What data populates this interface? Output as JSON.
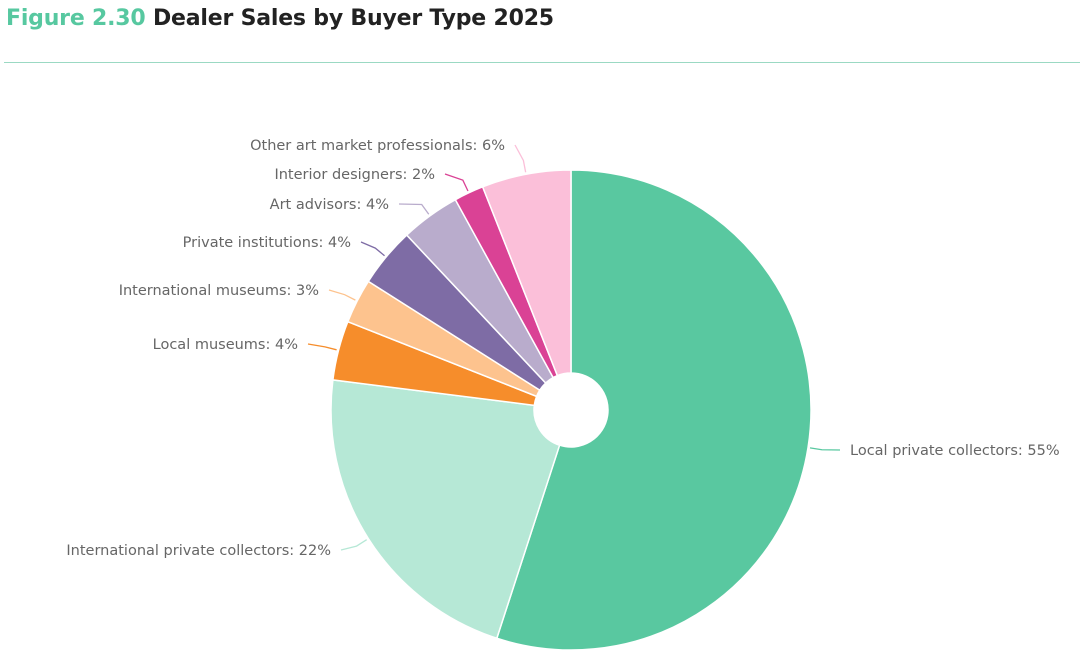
{
  "header": {
    "figure_number": "Figure 2.30",
    "title": "Dealer Sales by Buyer Type 2025"
  },
  "chart_data": {
    "type": "pie",
    "title": "Dealer Sales by Buyer Type 2025",
    "slices": [
      {
        "label": "Local private collectors",
        "value": 55,
        "color": "#59c8a0"
      },
      {
        "label": "International private collectors",
        "value": 22,
        "color": "#b6e8d6"
      },
      {
        "label": "Local museums",
        "value": 4,
        "color": "#f68d2b"
      },
      {
        "label": "International museums",
        "value": 3,
        "color": "#fdc38e"
      },
      {
        "label": "Private institutions",
        "value": 4,
        "color": "#7e6ca5"
      },
      {
        "label": "Art advisors",
        "value": 4,
        "color": "#b9accc"
      },
      {
        "label": "Interior designers",
        "value": 2,
        "color": "#da4295"
      },
      {
        "label": "Other art market professionals",
        "value": 6,
        "color": "#fbbfd9"
      }
    ],
    "label_format": "{label}: {value}%"
  }
}
